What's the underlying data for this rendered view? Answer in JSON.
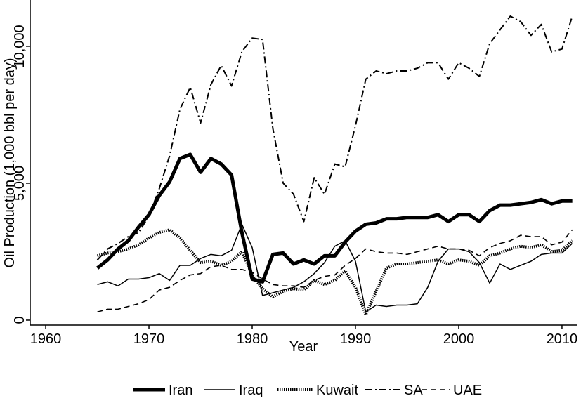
{
  "chart_data": {
    "type": "line",
    "xlabel": "Year",
    "ylabel": "Oil Production (1,000 bbl per day)",
    "x": [
      1965,
      1966,
      1967,
      1968,
      1969,
      1970,
      1971,
      1972,
      1973,
      1974,
      1975,
      1976,
      1977,
      1978,
      1979,
      1980,
      1981,
      1982,
      1983,
      1984,
      1985,
      1986,
      1987,
      1988,
      1989,
      1990,
      1991,
      1992,
      1993,
      1994,
      1995,
      1996,
      1997,
      1998,
      1999,
      2000,
      2001,
      2002,
      2003,
      2004,
      2005,
      2006,
      2007,
      2008,
      2009,
      2010,
      2011
    ],
    "series": [
      {
        "name": "Iran",
        "color": "#000000",
        "style": "thick",
        "values": [
          1900,
          2200,
          2600,
          2900,
          3400,
          3850,
          4550,
          5050,
          5900,
          6050,
          5400,
          5900,
          5700,
          5300,
          3200,
          1500,
          1400,
          2400,
          2450,
          2050,
          2200,
          2050,
          2350,
          2350,
          2850,
          3250,
          3500,
          3550,
          3700,
          3700,
          3750,
          3750,
          3750,
          3850,
          3600,
          3850,
          3850,
          3600,
          4000,
          4200,
          4200,
          4250,
          4300,
          4400,
          4250,
          4350,
          4350
        ]
      },
      {
        "name": "Iraq",
        "color": "#000000",
        "style": "solid",
        "values": [
          1300,
          1400,
          1250,
          1500,
          1500,
          1550,
          1700,
          1450,
          2000,
          2000,
          2250,
          2400,
          2350,
          2550,
          3500,
          2650,
          900,
          1000,
          1100,
          1200,
          1400,
          1700,
          2100,
          2700,
          2900,
          2150,
          300,
          550,
          500,
          550,
          550,
          600,
          1200,
          2150,
          2600,
          2600,
          2500,
          2100,
          1350,
          2050,
          1850,
          2000,
          2150,
          2400,
          2450,
          2450,
          2800
        ]
      },
      {
        "name": "Kuwait",
        "color": "#000000",
        "style": "dotted",
        "values": [
          2350,
          2450,
          2500,
          2600,
          2750,
          3000,
          3200,
          3300,
          3000,
          2550,
          2100,
          2150,
          2000,
          2150,
          2500,
          1650,
          1150,
          850,
          1050,
          1150,
          1100,
          1450,
          1300,
          1450,
          1800,
          1200,
          200,
          1050,
          1900,
          2050,
          2050,
          2100,
          2150,
          2200,
          2050,
          2200,
          2150,
          2000,
          2350,
          2450,
          2600,
          2700,
          2650,
          2750,
          2500,
          2550,
          2900
        ]
      },
      {
        "name": "SA",
        "color": "#000000",
        "style": "dash-dot",
        "values": [
          2200,
          2600,
          2800,
          3050,
          3200,
          3800,
          4800,
          6000,
          7700,
          8500,
          7200,
          8600,
          9300,
          8550,
          9800,
          10300,
          10250,
          7000,
          5000,
          4600,
          3600,
          5200,
          4600,
          5700,
          5600,
          7100,
          8800,
          9100,
          9000,
          9100,
          9100,
          9200,
          9400,
          9400,
          8800,
          9400,
          9200,
          8900,
          10100,
          10600,
          11100,
          10900,
          10400,
          10800,
          9800,
          9900,
          11100
        ]
      },
      {
        "name": "UAE",
        "color": "#000000",
        "style": "dashed",
        "values": [
          300,
          400,
          400,
          500,
          600,
          750,
          1100,
          1200,
          1450,
          1650,
          1700,
          1950,
          2000,
          1850,
          1850,
          1750,
          1500,
          1300,
          1250,
          1250,
          1200,
          1450,
          1600,
          1650,
          2000,
          2250,
          2600,
          2500,
          2450,
          2450,
          2400,
          2500,
          2600,
          2700,
          2600,
          2600,
          2550,
          2350,
          2650,
          2800,
          2900,
          3100,
          3050,
          3050,
          2750,
          2850,
          3300
        ]
      }
    ],
    "xlim": [
      1958.5,
      2011.5
    ],
    "xticks": [
      1960,
      1970,
      1980,
      1990,
      2000,
      2010
    ],
    "ylim": [
      -180,
      11690
    ],
    "yticks": [
      0,
      {
        "value": 5000,
        "label": "5,000"
      },
      {
        "value": 10000,
        "label": "10,000"
      }
    ],
    "legend": "bottom"
  }
}
